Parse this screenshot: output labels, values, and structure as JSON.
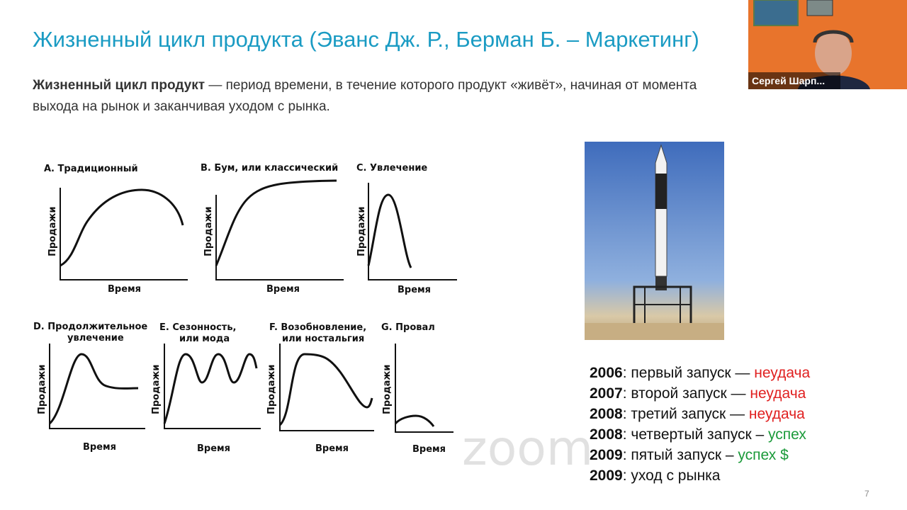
{
  "slide": {
    "title": "Жизненный цикл продукта (Эванс Дж. Р., Берман Б. – Маркетинг)",
    "definition_term": "Жизненный цикл продукт",
    "definition_text": " — период времени, в течение которого продукт «живёт», начиная от момента выхода на рынок и заканчивая уходом с рынка.",
    "page_number": "7"
  },
  "diagrams": {
    "y_axis": "Продажи",
    "x_axis": "Время",
    "items": [
      {
        "label": "А. Традиционный"
      },
      {
        "label": "В. Бум, или классический"
      },
      {
        "label": "С. Увлечение"
      },
      {
        "label": "D. Продолжительное",
        "label2": "увлечение"
      },
      {
        "label": "Е. Сезонность,",
        "label2": "или мода"
      },
      {
        "label": "F. Возобновление,",
        "label2": "или ностальгия"
      },
      {
        "label": "G. Провал"
      }
    ]
  },
  "timeline": [
    {
      "year": "2006",
      "text": ": первый запуск — ",
      "result": "неудача",
      "status": "fail"
    },
    {
      "year": "2007",
      "text": ": второй запуск — ",
      "result": "неудача",
      "status": "fail"
    },
    {
      "year": "2008",
      "text": ": третий запуск — ",
      "result": "неудача",
      "status": "fail"
    },
    {
      "year": "2008",
      "text": ": четвертый запуск – ",
      "result": "успех",
      "status": "success"
    },
    {
      "year": "2009",
      "text": ": пятый запуск – ",
      "result": "успех $",
      "status": "success"
    },
    {
      "year": "2009",
      "text": ": уход с рынка",
      "result": "",
      "status": ""
    }
  ],
  "colors": {
    "title": "#1a9bc3",
    "fail": "#e02020",
    "success": "#1b9a3a"
  },
  "zoom": {
    "participant_name": "Сергей Шарп...",
    "watermark": "zoom"
  }
}
